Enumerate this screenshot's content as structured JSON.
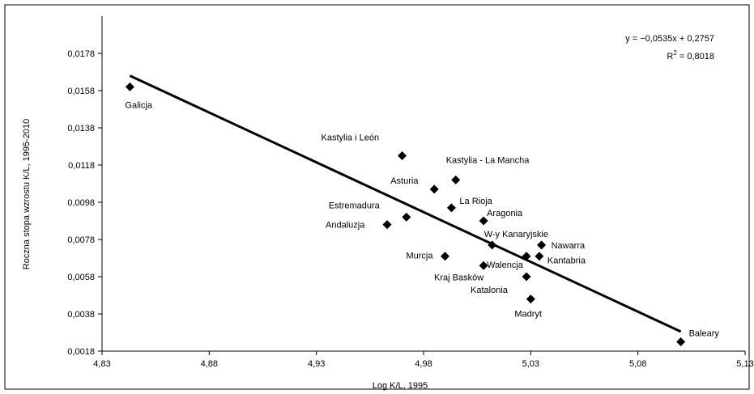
{
  "chart_data": {
    "type": "scatter",
    "title": "",
    "xlabel": "Log K/L, 1995",
    "ylabel": "Roczna stopa wzrostu K/L, 1995-2010",
    "xlim": [
      4.83,
      5.13
    ],
    "ylim": [
      0.0018,
      0.0198
    ],
    "xticks": [
      4.83,
      4.88,
      4.93,
      4.98,
      5.03,
      5.08,
      5.13
    ],
    "xtick_labels": [
      "4,83",
      "4,88",
      "4,93",
      "4,98",
      "5,03",
      "5,08",
      "5,13"
    ],
    "yticks": [
      0.0018,
      0.0038,
      0.0058,
      0.0078,
      0.0098,
      0.0118,
      0.0138,
      0.0158,
      0.0178
    ],
    "ytick_labels": [
      "0,0018",
      "0,0038",
      "0,0058",
      "0,0078",
      "0,0098",
      "0,0118",
      "0,0138",
      "0,0158",
      "0,0178"
    ],
    "grid": false,
    "marker": "diamond",
    "points": [
      {
        "name": "Galicja",
        "x": 4.843,
        "y": 0.016
      },
      {
        "name": "Kastylia i León",
        "x": 4.97,
        "y": 0.0123
      },
      {
        "name": "Kastylia - La Mancha",
        "x": 4.995,
        "y": 0.011
      },
      {
        "name": "Asturia",
        "x": 4.985,
        "y": 0.0105
      },
      {
        "name": "La Rioja",
        "x": 4.993,
        "y": 0.0095
      },
      {
        "name": "Estremadura",
        "x": 4.972,
        "y": 0.009
      },
      {
        "name": "Andaluzja",
        "x": 4.963,
        "y": 0.0086
      },
      {
        "name": "Aragonia",
        "x": 5.008,
        "y": 0.0088
      },
      {
        "name": "W-y Kanaryjskie",
        "x": 5.012,
        "y": 0.0075
      },
      {
        "name": "Nawarra",
        "x": 5.035,
        "y": 0.0075
      },
      {
        "name": "Kantabria",
        "x": 5.034,
        "y": 0.0069
      },
      {
        "name": "Murcja",
        "x": 4.99,
        "y": 0.0069
      },
      {
        "name": "Walencja",
        "x": 5.008,
        "y": 0.0064
      },
      {
        "name": "Kraj Basków",
        "x": 5.028,
        "y": 0.0069
      },
      {
        "name": "Katalonia",
        "x": 5.028,
        "y": 0.0058
      },
      {
        "name": "Madryt",
        "x": 5.03,
        "y": 0.0046
      },
      {
        "name": "Baleary",
        "x": 5.1,
        "y": 0.0023
      }
    ],
    "trendline": {
      "slope": -0.0535,
      "intercept": 0.2757,
      "x_range": [
        4.843,
        5.1
      ]
    },
    "equation": "y = −0,0535x + 0,2757",
    "r2_label": "R",
    "r2_sup": "2",
    "r2_value": " = 0,8018"
  }
}
